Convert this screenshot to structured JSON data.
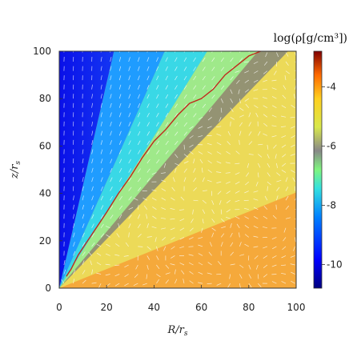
{
  "chart_data": {
    "type": "heatmap",
    "title": "",
    "colorbar_label": "log(ρ[g/cm³])",
    "xlabel": "R/r",
    "xlabel_sub": "s",
    "ylabel": "z/r",
    "ylabel_sub": "s",
    "xlim": [
      0,
      100
    ],
    "ylim": [
      0,
      100
    ],
    "x_ticks": [
      0,
      20,
      40,
      60,
      80,
      100
    ],
    "y_ticks": [
      0,
      20,
      40,
      60,
      80,
      100
    ],
    "colorbar_range": [
      -10.8,
      -2.8
    ],
    "colorbar_ticks": [
      -4,
      -6,
      -8,
      -10
    ],
    "colormap": "jet",
    "overlay": "velocity vector field (white arrows)",
    "boundary_curve": {
      "color": "#c0281c",
      "x": [
        3,
        5,
        8,
        12,
        16,
        20,
        25,
        30,
        35,
        40,
        45,
        50,
        55,
        60,
        65,
        70,
        75,
        80,
        85
      ],
      "y": [
        5,
        8,
        14,
        20,
        26,
        32,
        40,
        47,
        55,
        62,
        67,
        73,
        78,
        80,
        84,
        90,
        94,
        98,
        100
      ]
    },
    "grid": false
  }
}
